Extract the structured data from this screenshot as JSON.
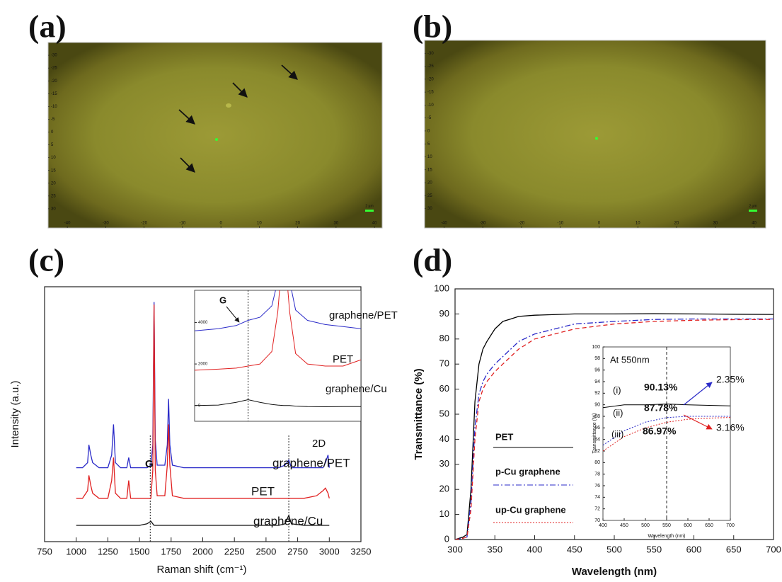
{
  "chart_data": [
    {
      "type": "image",
      "label": "(a)",
      "xlim": [
        -45,
        42
      ],
      "ylim": [
        37.5,
        -35
      ],
      "xticks": [
        -40,
        -30,
        -20,
        -10,
        0,
        10,
        20,
        30,
        40
      ],
      "yticks": [
        -30,
        -25,
        -20,
        -15,
        -10,
        -5,
        0,
        5,
        10,
        15,
        20,
        25,
        30
      ],
      "scale_bar": "2 µm"
    },
    {
      "type": "image",
      "label": "(b)",
      "xlim": [
        -45,
        43
      ],
      "ylim": [
        37.5,
        -35
      ],
      "xticks": [
        -40,
        -30,
        -20,
        -10,
        0,
        10,
        20,
        30,
        40
      ],
      "yticks": [
        -30,
        -25,
        -20,
        -15,
        -10,
        -5,
        0,
        5,
        10,
        15,
        20,
        25,
        30
      ],
      "scale_bar": "2 µm"
    },
    {
      "type": "line",
      "label": "(c)",
      "x_label": "Raman shift (cm⁻¹)",
      "y_label": "Intensity (a.u.)",
      "xlim": [
        750,
        3250
      ],
      "ylim": [
        0,
        100
      ],
      "xticks": [
        750,
        1000,
        1250,
        1500,
        1750,
        2000,
        2250,
        2500,
        2750,
        3000,
        3250
      ],
      "ref_lines": [
        1585,
        2680
      ],
      "x": [
        1000,
        1050,
        1090,
        1100,
        1115,
        1130,
        1180,
        1250,
        1280,
        1295,
        1310,
        1350,
        1400,
        1415,
        1430,
        1500,
        1560,
        1590,
        1605,
        1615,
        1625,
        1640,
        1700,
        1720,
        1730,
        1740,
        1760,
        1850,
        2000,
        2200,
        2400,
        2600,
        2650,
        2680,
        2700,
        2800,
        2900,
        2950,
        2970,
        2990,
        3000
      ],
      "series": [
        {
          "name": "graphene/PET",
          "color": "#2a2ac8",
          "dash": "solid",
          "values": [
            29,
            29,
            31,
            38,
            34,
            31,
            29,
            29,
            34,
            46,
            31,
            29,
            29,
            33,
            29,
            29,
            29,
            30,
            38,
            94,
            40,
            30,
            30,
            38,
            56,
            38,
            30,
            29,
            29,
            29,
            29,
            29,
            30,
            32,
            29,
            29,
            29,
            29,
            31,
            34,
            29
          ]
        },
        {
          "name": "PET",
          "color": "#e02020",
          "dash": "solid",
          "values": [
            17,
            17,
            20,
            26,
            22,
            19,
            17,
            17,
            24,
            33,
            19,
            17,
            17,
            24,
            17,
            17,
            17,
            17,
            28,
            93,
            28,
            18,
            18,
            30,
            46,
            30,
            18,
            17,
            17,
            17,
            17,
            17,
            17,
            17,
            17,
            17,
            18,
            20,
            21,
            19,
            17
          ]
        },
        {
          "name": "graphene/Cu",
          "color": "#111111",
          "dash": "solid",
          "values": [
            6.4,
            6.4,
            6.4,
            6.4,
            6.4,
            6.4,
            6.4,
            6.4,
            6.4,
            6.4,
            6.4,
            6.4,
            6.4,
            6.4,
            6.4,
            6.4,
            7,
            8,
            7,
            6.4,
            6.4,
            6.4,
            6.4,
            6.4,
            6.4,
            6.4,
            6.4,
            6.4,
            6.4,
            6.4,
            6.4,
            6.4,
            7,
            10.3,
            7,
            6.4,
            6.4,
            6.4,
            6.4,
            6.4,
            6.4
          ]
        }
      ],
      "annotations": [
        {
          "text": "G",
          "color": "#111111"
        },
        {
          "text": "2D",
          "color": "#111111"
        },
        {
          "text": "graphene/PET",
          "color": "#2a2ac8"
        },
        {
          "text": "PET",
          "color": "#e02020"
        },
        {
          "text": "graphene/Cu",
          "color": "#111111"
        }
      ]
    },
    {
      "type": "line",
      "xlim": [
        1540,
        1680
      ],
      "ylim": [
        -760,
        5550
      ],
      "yticks": [
        0,
        2000,
        4000
      ],
      "ref_lines": [
        1585
      ],
      "x": [
        1540,
        1560,
        1575,
        1585,
        1595,
        1605,
        1610,
        1615,
        1620,
        1625,
        1635,
        1650,
        1665,
        1680
      ],
      "series": [
        {
          "name": "graphene/PET",
          "color": "#2a2ac8",
          "dash": "solid",
          "values": [
            3600,
            3700,
            3850,
            4100,
            4250,
            4800,
            6000,
            8000,
            6000,
            4600,
            4100,
            3900,
            3800,
            3700
          ]
        },
        {
          "name": "PET",
          "color": "#e02020",
          "dash": "solid",
          "values": [
            1700,
            1750,
            1800,
            1900,
            2000,
            2600,
            4500,
            8000,
            4500,
            2500,
            2000,
            1900,
            1900,
            2200
          ]
        },
        {
          "name": "graphene/Cu",
          "color": "#111111",
          "dash": "solid",
          "values": [
            0,
            20,
            150,
            280,
            150,
            50,
            20,
            0,
            0,
            -30,
            -50,
            -60,
            -50,
            -50
          ]
        }
      ],
      "annotations": [
        {
          "text": "G",
          "color": "#111111"
        },
        {
          "text": "graphene/PET",
          "color": "#2a2ac8"
        },
        {
          "text": "PET",
          "color": "#e02020"
        },
        {
          "text": "graphene/Cu",
          "color": "#111111"
        }
      ]
    },
    {
      "type": "line",
      "label": "(d)",
      "x_label": "Wavelength (nm)",
      "y_label": "Transmittance (%)",
      "xlim": [
        300,
        700
      ],
      "ylim": [
        0,
        100
      ],
      "xticks": [
        300,
        350,
        400,
        450,
        500,
        550,
        600,
        650,
        700
      ],
      "yticks": [
        0,
        10,
        20,
        30,
        40,
        50,
        60,
        70,
        80,
        90,
        100
      ],
      "legend": "lower center",
      "x": [
        300,
        310,
        315,
        320,
        325,
        330,
        335,
        340,
        350,
        360,
        370,
        380,
        400,
        450,
        500,
        550,
        600,
        650,
        700
      ],
      "series": [
        {
          "name": "PET",
          "color": "#000000",
          "dash": "solid",
          "values": [
            0,
            1,
            2,
            20,
            55,
            70,
            76,
            79,
            84,
            87,
            88,
            89,
            89.5,
            90,
            90,
            90.1,
            90,
            89.9,
            89.8
          ]
        },
        {
          "name": "p-Cu graphene",
          "color": "#2a2ac8",
          "dash": "dashdot",
          "values": [
            0,
            0.5,
            1,
            15,
            45,
            58,
            63,
            66,
            70,
            73,
            76,
            79,
            82,
            86,
            87,
            87.8,
            88,
            88,
            88
          ]
        },
        {
          "name": "up-Cu graphene",
          "color": "#e02020",
          "dash": "dashed",
          "values": [
            0,
            0.5,
            1,
            12,
            40,
            55,
            60,
            63,
            67,
            70,
            73,
            76,
            80,
            84,
            86,
            87,
            87.5,
            87.7,
            87.8
          ]
        }
      ]
    },
    {
      "type": "line",
      "x_label": "Wavelength (nm)",
      "y_label": "Transmittance (%)",
      "xlim": [
        400,
        700
      ],
      "ylim": [
        70,
        100
      ],
      "xticks": [
        400,
        450,
        500,
        550,
        600,
        650,
        700
      ],
      "yticks": [
        70,
        72,
        74,
        76,
        78,
        80,
        82,
        84,
        86,
        88,
        90,
        92,
        94,
        96,
        98,
        100
      ],
      "ref_lines": [
        550
      ],
      "x": [
        400,
        450,
        500,
        550,
        600,
        650,
        700
      ],
      "series": [
        {
          "name": "PET",
          "color": "#000000",
          "dash": "solid",
          "values": [
            89.5,
            90,
            90,
            90.13,
            90,
            89.9,
            89.8
          ]
        },
        {
          "name": "p-Cu graphene",
          "color": "#2a2ac8",
          "dash": "dotted",
          "values": [
            83,
            85.5,
            87,
            87.78,
            88,
            88,
            88
          ]
        },
        {
          "name": "up-Cu graphene",
          "color": "#e02020",
          "dash": "dotted",
          "values": [
            82,
            84.5,
            86,
            86.97,
            87.5,
            87.7,
            87.8
          ]
        }
      ],
      "annotations": [
        {
          "text": "At 550nm",
          "color": "#111111"
        },
        {
          "text": "(i)",
          "color": "#111111"
        },
        {
          "text": "(ii)",
          "color": "#2a2ac8"
        },
        {
          "text": "(iii)",
          "color": "#e02020"
        },
        {
          "text": "90.13%",
          "color": "#111111"
        },
        {
          "text": "87.78%",
          "color": "#2a2ac8"
        },
        {
          "text": "86.97%",
          "color": "#e02020"
        },
        {
          "text": "2.35%",
          "color": "#2a2ac8"
        },
        {
          "text": "3.16%",
          "color": "#e02020"
        }
      ]
    }
  ]
}
